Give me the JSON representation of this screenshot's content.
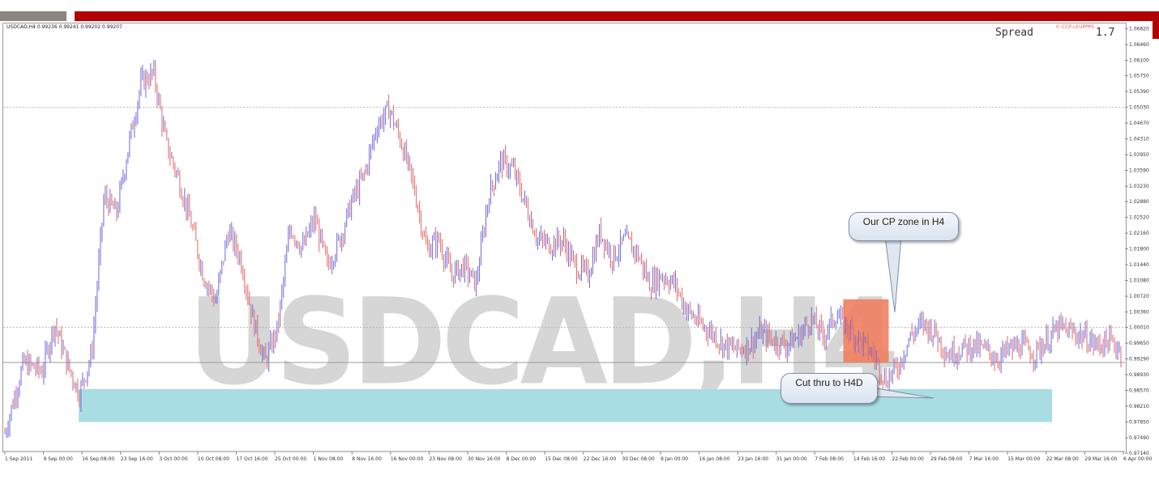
{
  "header": {
    "symbol_info": "USDCAD,H4  0.99236 0.99241 0.99202 0.99207",
    "spread_label": "Spread",
    "spread_value": "1.7",
    "spread_tag": "© CCP-LEUPPPS"
  },
  "watermark": "USDCAD,H4",
  "annotations": {
    "cp_zone": "Our CP zone in H4",
    "cut_thru": "Cut thru to H4D"
  },
  "colors": {
    "bull": "#6a6ae0",
    "bear": "#e06a6a",
    "cp_zone_fill": "#f08060",
    "support_zone_fill": "#a8dde4",
    "accent_red": "#b30000"
  },
  "chart_data": {
    "type": "candlestick",
    "ylim": [
      0.9714,
      1.0674
    ],
    "y_ticks": [
      "1.06820",
      "1.06460",
      "1.06100",
      "1.05750",
      "1.05390",
      "1.05030",
      "1.04670",
      "1.04310",
      "1.03950",
      "1.03590",
      "1.03230",
      "1.02880",
      "1.02520",
      "1.02160",
      "1.01800",
      "1.01440",
      "1.01080",
      "1.00720",
      "1.00360",
      "1.00010",
      "0.99650",
      "0.99290",
      "0.98930",
      "0.98570",
      "0.98210",
      "0.97850",
      "0.97490",
      "0.97140"
    ],
    "x_ticks": [
      "1 Sep 2011",
      "9 Sep 00:00",
      "16 Sep 08:00",
      "23 Sep 16:00",
      "3 Oct 00:00",
      "10 Oct 08:00",
      "17 Oct 16:00",
      "25 Oct 00:00",
      "1 Nov 08:00",
      "8 Nov 16:00",
      "16 Nov 00:00",
      "23 Nov 08:00",
      "30 Nov 16:00",
      "8 Dec 00:00",
      "15 Dec 08:00",
      "22 Dec 16:00",
      "30 Dec 08:00",
      "9 Jan 00:00",
      "16 Jan 08:00",
      "23 Jan 16:00",
      "31 Jan 00:00",
      "7 Feb 08:00",
      "14 Feb 16:00",
      "22 Feb 00:00",
      "29 Feb 08:00",
      "7 Mar 16:00",
      "15 Mar 00:00",
      "22 Mar 08:00",
      "29 Mar 16:00",
      "6 Apr 00:00"
    ],
    "price_path": [
      [
        0,
        0.976
      ],
      [
        3,
        0.992
      ],
      [
        6,
        0.99
      ],
      [
        8,
        1.001
      ],
      [
        10,
        0.992
      ],
      [
        12,
        0.985
      ],
      [
        14,
        0.994
      ],
      [
        16,
        1.03
      ],
      [
        18,
        1.026
      ],
      [
        20,
        1.042
      ],
      [
        22,
        1.056
      ],
      [
        24,
        1.058
      ],
      [
        26,
        1.042
      ],
      [
        28,
        1.034
      ],
      [
        30,
        1.024
      ],
      [
        32,
        1.012
      ],
      [
        34,
        1.006
      ],
      [
        36,
        1.022
      ],
      [
        38,
        1.016
      ],
      [
        40,
        1.002
      ],
      [
        42,
        0.992
      ],
      [
        44,
        1.0
      ],
      [
        46,
        1.023
      ],
      [
        48,
        1.018
      ],
      [
        50,
        1.025
      ],
      [
        52,
        1.014
      ],
      [
        54,
        1.02
      ],
      [
        56,
        1.029
      ],
      [
        58,
        1.035
      ],
      [
        60,
        1.046
      ],
      [
        62,
        1.05
      ],
      [
        64,
        1.042
      ],
      [
        66,
        1.032
      ],
      [
        68,
        1.018
      ],
      [
        70,
        1.02
      ],
      [
        72,
        1.012
      ],
      [
        74,
        1.014
      ],
      [
        76,
        1.01
      ],
      [
        78,
        1.03
      ],
      [
        80,
        1.038
      ],
      [
        82,
        1.036
      ],
      [
        84,
        1.028
      ],
      [
        86,
        1.02
      ],
      [
        88,
        1.019
      ],
      [
        90,
        1.02
      ],
      [
        92,
        1.014
      ],
      [
        94,
        1.012
      ],
      [
        96,
        1.022
      ],
      [
        98,
        1.016
      ],
      [
        100,
        1.02
      ],
      [
        102,
        1.017
      ],
      [
        104,
        1.01
      ],
      [
        106,
        1.012
      ],
      [
        108,
        1.01
      ],
      [
        110,
        1.004
      ],
      [
        112,
        1.001
      ],
      [
        114,
        0.999
      ],
      [
        116,
        0.996
      ],
      [
        118,
        0.995
      ],
      [
        120,
        0.996
      ],
      [
        122,
        0.999
      ],
      [
        124,
        0.997
      ],
      [
        126,
        0.996
      ],
      [
        128,
        0.998
      ],
      [
        130,
        1.002
      ],
      [
        132,
        0.998
      ],
      [
        134,
        1.003
      ],
      [
        136,
        1.0
      ],
      [
        138,
        0.997
      ],
      [
        140,
        0.994
      ],
      [
        142,
        0.988
      ],
      [
        144,
        0.991
      ],
      [
        146,
        0.998
      ],
      [
        148,
        1.001
      ],
      [
        150,
        0.999
      ],
      [
        152,
        0.994
      ],
      [
        154,
        0.995
      ],
      [
        156,
        0.996
      ],
      [
        158,
        0.995
      ],
      [
        160,
        0.993
      ],
      [
        162,
        0.995
      ],
      [
        164,
        0.996
      ],
      [
        166,
        0.994
      ],
      [
        168,
        0.997
      ],
      [
        170,
        1.0
      ],
      [
        172,
        0.999
      ],
      [
        174,
        0.998
      ],
      [
        176,
        0.996
      ],
      [
        178,
        0.997
      ],
      [
        180,
        0.995
      ]
    ],
    "zones": [
      {
        "name": "CP zone",
        "x_from": "22 Feb 00:00",
        "y": [
          0.9921,
          1.0065
        ]
      },
      {
        "name": "Support zone",
        "x_from": "16 Sep 08:00",
        "y": [
          0.9785,
          0.986
        ]
      }
    ],
    "hlines": [
      1.0503,
      1.0001,
      0.99207
    ]
  }
}
